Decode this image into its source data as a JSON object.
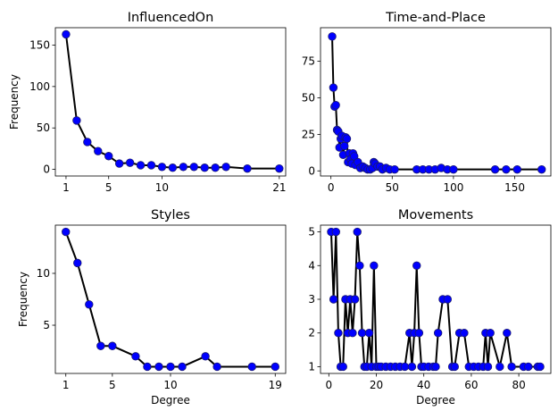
{
  "chart_data": [
    {
      "type": "line",
      "title": "InfluencedOn",
      "xlabel": "",
      "ylabel": "Frequency",
      "xlim": [
        0.0,
        21.6
      ],
      "ylim": [
        -8,
        171
      ],
      "xticks": [
        1,
        5,
        10,
        21
      ],
      "yticks": [
        0,
        50,
        100,
        150
      ],
      "x": [
        1,
        2,
        3,
        4,
        5,
        6,
        7,
        8,
        9,
        10,
        11,
        12,
        13,
        14,
        15,
        16,
        18,
        21
      ],
      "y": [
        163,
        59,
        33,
        22,
        16,
        7,
        8,
        5,
        5,
        3,
        2,
        3,
        3,
        2,
        2,
        3,
        1,
        1
      ]
    },
    {
      "type": "line",
      "title": "Time-and-Place",
      "xlabel": "",
      "ylabel": "",
      "xlim": [
        -8.5,
        179.5
      ],
      "ylim": [
        -3.5,
        98
      ],
      "xticks": [
        0,
        50,
        100,
        150
      ],
      "yticks": [
        0,
        25,
        50,
        75
      ],
      "x": [
        1,
        2,
        3,
        4,
        5,
        6,
        7,
        8,
        9,
        10,
        11,
        12,
        13,
        14,
        15,
        16,
        17,
        18,
        19,
        20,
        22,
        24,
        26,
        28,
        30,
        32,
        34,
        35,
        36,
        38,
        40,
        42,
        45,
        48,
        52,
        70,
        75,
        80,
        85,
        90,
        95,
        100,
        134,
        143,
        152,
        172
      ],
      "y": [
        92,
        57,
        44,
        45,
        28,
        27,
        16,
        22,
        24,
        11,
        17,
        23,
        22,
        6,
        12,
        8,
        5,
        12,
        10,
        4,
        6,
        2,
        3,
        2,
        1,
        1,
        2,
        6,
        5,
        3,
        3,
        1,
        2,
        1,
        1,
        1,
        1,
        1,
        1,
        2,
        1,
        1,
        1,
        1,
        1,
        1
      ]
    },
    {
      "type": "line",
      "title": "Styles",
      "xlabel": "Degree",
      "ylabel": "Frequency",
      "xlim": [
        0.1,
        19.9
      ],
      "ylim": [
        0.35,
        14.65
      ],
      "xticks": [
        1,
        5,
        10,
        19
      ],
      "yticks": [
        5,
        10
      ],
      "x": [
        1,
        2,
        3,
        4,
        5,
        7,
        8,
        9,
        10,
        11,
        13,
        14,
        17,
        19
      ],
      "y": [
        14,
        11,
        7,
        3,
        3,
        2,
        1,
        1,
        1,
        1,
        2,
        1,
        1,
        1
      ]
    },
    {
      "type": "line",
      "title": "Movements",
      "xlabel": "Degree",
      "ylabel": "",
      "xlim": [
        -3.5,
        93.5
      ],
      "ylim": [
        0.8,
        5.2
      ],
      "xticks": [
        0,
        20,
        40,
        60,
        80
      ],
      "yticks": [
        1,
        2,
        3,
        4,
        5
      ],
      "x": [
        1,
        2,
        3,
        4,
        5,
        6,
        7,
        8,
        9,
        10,
        11,
        12,
        13,
        14,
        15,
        16,
        17,
        18,
        19,
        20,
        21,
        22,
        24,
        26,
        28,
        30,
        32,
        34,
        35,
        36,
        37,
        38,
        39,
        40,
        42,
        44,
        45,
        46,
        48,
        50,
        52,
        53,
        55,
        57,
        59,
        61,
        63,
        65,
        66,
        67,
        68,
        72,
        75,
        77,
        82,
        84,
        88,
        89
      ],
      "y": [
        5,
        3,
        5,
        2,
        1,
        1,
        3,
        2,
        3,
        2,
        3,
        5,
        4,
        2,
        1,
        1,
        2,
        1,
        4,
        1,
        1,
        1,
        1,
        1,
        1,
        1,
        1,
        2,
        1,
        2,
        4,
        2,
        1,
        1,
        1,
        1,
        1,
        2,
        3,
        3,
        1,
        1,
        2,
        2,
        1,
        1,
        1,
        1,
        2,
        1,
        2,
        1,
        2,
        1,
        1,
        1,
        1,
        1
      ]
    }
  ]
}
